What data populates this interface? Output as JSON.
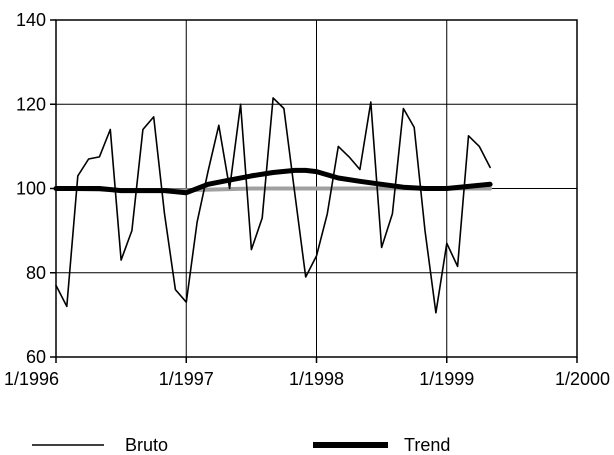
{
  "chart_data": {
    "type": "line",
    "title": "",
    "xlabel": "",
    "ylabel": "",
    "ylim": [
      60,
      140
    ],
    "yticks": [
      60,
      80,
      100,
      120,
      140
    ],
    "xlim": [
      1996.0,
      2000.0
    ],
    "xticks": [
      {
        "value": 1996.0,
        "label": "1/1996"
      },
      {
        "value": 1997.0,
        "label": "1/1997"
      },
      {
        "value": 1998.0,
        "label": "1/1998"
      },
      {
        "value": 1999.0,
        "label": "1/1999"
      },
      {
        "value": 2000.0,
        "label": "1/2000"
      }
    ],
    "grid": true,
    "legend_position": "bottom",
    "series": [
      {
        "name": "Bruto",
        "style": "thin",
        "color": "#000000",
        "x": [
          1996.0,
          1996.083,
          1996.167,
          1996.25,
          1996.333,
          1996.417,
          1996.5,
          1996.583,
          1996.667,
          1996.75,
          1996.833,
          1996.917,
          1997.0,
          1997.083,
          1997.167,
          1997.25,
          1997.333,
          1997.417,
          1997.5,
          1997.583,
          1997.667,
          1997.75,
          1997.833,
          1997.917,
          1998.0,
          1998.083,
          1998.167,
          1998.25,
          1998.333,
          1998.417,
          1998.5,
          1998.583,
          1998.667,
          1998.75,
          1998.833,
          1998.917,
          1999.0,
          1999.083,
          1999.167,
          1999.25,
          1999.333
        ],
        "values": [
          77,
          72,
          103,
          107,
          107.5,
          114,
          83,
          90,
          114,
          117,
          94,
          76,
          73,
          92,
          104,
          115,
          100,
          120,
          85.5,
          93,
          121.5,
          119,
          99,
          79,
          84,
          94,
          110,
          107.5,
          104.5,
          120.5,
          86,
          94,
          119,
          114.5,
          90,
          70.5,
          87,
          81.5,
          112.5,
          110,
          105
        ]
      },
      {
        "name": "Trend",
        "style": "thick",
        "color": "#000000",
        "x": [
          1996.0,
          1996.167,
          1996.333,
          1996.5,
          1996.667,
          1996.833,
          1997.0,
          1997.167,
          1997.333,
          1997.5,
          1997.667,
          1997.833,
          1997.917,
          1998.0,
          1998.167,
          1998.333,
          1998.5,
          1998.667,
          1998.833,
          1999.0,
          1999.167,
          1999.333
        ],
        "values": [
          100,
          100,
          100,
          99.5,
          99.5,
          99.5,
          99,
          101,
          102,
          103,
          103.8,
          104.3,
          104.3,
          104,
          102.5,
          101.7,
          101,
          100.3,
          100,
          100,
          100.5,
          101
        ]
      },
      {
        "name": "",
        "style": "grey-band",
        "color": "#a0a0a0",
        "x": [
          1996.0,
          1996.5,
          1997.0,
          1997.5,
          1998.0,
          1998.5,
          1999.0,
          1999.333
        ],
        "values": [
          100,
          99.6,
          99.6,
          100,
          100,
          100,
          100,
          100
        ]
      }
    ]
  }
}
